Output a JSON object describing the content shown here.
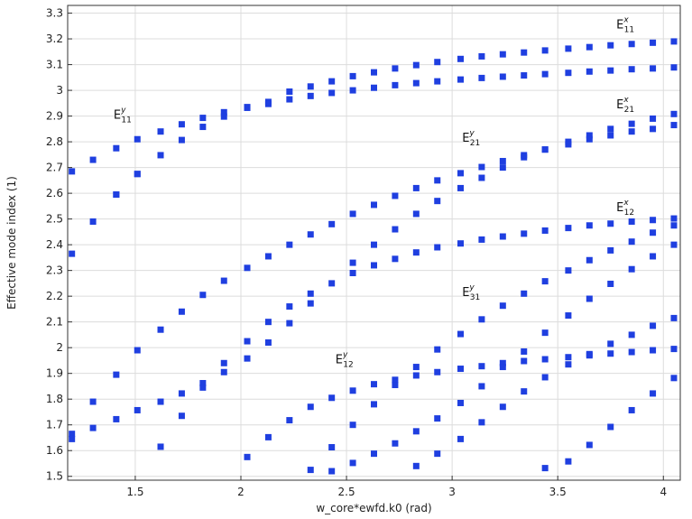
{
  "chart_data": {
    "type": "scatter",
    "title": "",
    "xlabel": "w_core*ewfd.k0 (rad)",
    "ylabel": "Effective mode index (1)",
    "xlim": [
      1.18,
      4.08
    ],
    "ylim": [
      1.485,
      3.33
    ],
    "xticks": [
      1.5,
      2,
      2.5,
      3,
      3.5,
      4
    ],
    "yticks": [
      1.5,
      1.6,
      1.7,
      1.8,
      1.9,
      2,
      2.1,
      2.2,
      2.3,
      2.4,
      2.5,
      2.6,
      2.7,
      2.8,
      2.9,
      3,
      3.1,
      3.2,
      3.3
    ],
    "grid": true,
    "marker_color": "#1f3fe0",
    "annotations": [
      {
        "text": "E",
        "sub": "11",
        "sup": "x",
        "x": 3.82,
        "y": 3.24
      },
      {
        "text": "E",
        "sub": "11",
        "sup": "y",
        "x": 1.44,
        "y": 2.89
      },
      {
        "text": "E",
        "sub": "21",
        "sup": "x",
        "x": 3.82,
        "y": 2.93
      },
      {
        "text": "E",
        "sub": "21",
        "sup": "y",
        "x": 3.09,
        "y": 2.8
      },
      {
        "text": "E",
        "sub": "12",
        "sup": "x",
        "x": 3.82,
        "y": 2.53
      },
      {
        "text": "E",
        "sub": "31",
        "sup": "y",
        "x": 3.09,
        "y": 2.2
      },
      {
        "text": "E",
        "sub": "12",
        "sup": "y",
        "x": 2.49,
        "y": 1.94
      }
    ],
    "points": [
      [
        1.2,
        2.685
      ],
      [
        1.3,
        2.73
      ],
      [
        1.41,
        2.775
      ],
      [
        1.51,
        2.81
      ],
      [
        1.62,
        2.84
      ],
      [
        1.72,
        2.868
      ],
      [
        1.82,
        2.893
      ],
      [
        1.92,
        2.915
      ],
      [
        2.03,
        2.935
      ],
      [
        2.13,
        2.955
      ],
      [
        2.23,
        2.995
      ],
      [
        2.33,
        3.015
      ],
      [
        2.43,
        3.035
      ],
      [
        2.53,
        3.055
      ],
      [
        2.63,
        3.07
      ],
      [
        2.73,
        3.085
      ],
      [
        2.83,
        3.098
      ],
      [
        2.93,
        3.11
      ],
      [
        3.04,
        3.122
      ],
      [
        3.14,
        3.132
      ],
      [
        3.24,
        3.14
      ],
      [
        3.34,
        3.147
      ],
      [
        3.44,
        3.155
      ],
      [
        3.55,
        3.162
      ],
      [
        3.65,
        3.168
      ],
      [
        3.75,
        3.175
      ],
      [
        3.85,
        3.18
      ],
      [
        3.95,
        3.185
      ],
      [
        4.05,
        3.19
      ],
      [
        1.41,
        2.595
      ],
      [
        1.51,
        2.675
      ],
      [
        1.62,
        2.748
      ],
      [
        1.72,
        2.807
      ],
      [
        1.82,
        2.858
      ],
      [
        1.92,
        2.898
      ],
      [
        2.03,
        2.932
      ],
      [
        2.13,
        2.947
      ],
      [
        2.23,
        2.965
      ],
      [
        2.33,
        2.978
      ],
      [
        2.43,
        2.99
      ],
      [
        2.53,
        3.0
      ],
      [
        2.63,
        3.01
      ],
      [
        2.73,
        3.02
      ],
      [
        2.83,
        3.028
      ],
      [
        2.93,
        3.035
      ],
      [
        3.04,
        3.042
      ],
      [
        3.14,
        3.048
      ],
      [
        3.24,
        3.053
      ],
      [
        3.34,
        3.058
      ],
      [
        3.44,
        3.063
      ],
      [
        3.55,
        3.068
      ],
      [
        3.65,
        3.073
      ],
      [
        3.75,
        3.077
      ],
      [
        3.85,
        3.082
      ],
      [
        3.95,
        3.085
      ],
      [
        4.05,
        3.089
      ],
      [
        1.2,
        2.365
      ],
      [
        1.3,
        2.49
      ],
      [
        1.41,
        2.595
      ],
      [
        1.51,
        2.675
      ],
      [
        1.2,
        1.665
      ],
      [
        1.3,
        1.79
      ],
      [
        1.41,
        1.895
      ],
      [
        1.51,
        1.99
      ],
      [
        1.62,
        2.07
      ],
      [
        1.72,
        2.14
      ],
      [
        1.82,
        2.205
      ],
      [
        1.92,
        2.26
      ],
      [
        2.03,
        2.31
      ],
      [
        2.13,
        2.355
      ],
      [
        2.23,
        2.4
      ],
      [
        2.33,
        2.44
      ],
      [
        2.43,
        2.48
      ],
      [
        2.53,
        2.52
      ],
      [
        2.63,
        2.555
      ],
      [
        2.73,
        2.59
      ],
      [
        2.83,
        2.62
      ],
      [
        2.93,
        2.65
      ],
      [
        3.04,
        2.678
      ],
      [
        3.14,
        2.702
      ],
      [
        3.24,
        2.725
      ],
      [
        3.34,
        2.748
      ],
      [
        3.44,
        2.77
      ],
      [
        3.55,
        2.8
      ],
      [
        3.65,
        2.825
      ],
      [
        3.75,
        2.85
      ],
      [
        3.85,
        2.87
      ],
      [
        3.95,
        2.89
      ],
      [
        4.05,
        2.908
      ],
      [
        1.2,
        1.645
      ],
      [
        1.3,
        1.688
      ],
      [
        1.41,
        1.722
      ],
      [
        1.51,
        1.757
      ],
      [
        1.62,
        1.79
      ],
      [
        1.72,
        1.822
      ],
      [
        1.82,
        1.862
      ],
      [
        1.92,
        1.905
      ],
      [
        2.03,
        1.958
      ],
      [
        2.13,
        2.02
      ],
      [
        2.23,
        2.095
      ],
      [
        2.33,
        2.172
      ],
      [
        2.43,
        2.25
      ],
      [
        2.53,
        2.29
      ],
      [
        2.63,
        2.32
      ],
      [
        2.73,
        2.345
      ],
      [
        2.83,
        2.37
      ],
      [
        2.93,
        2.39
      ],
      [
        3.04,
        2.405
      ],
      [
        3.14,
        2.42
      ],
      [
        3.24,
        2.432
      ],
      [
        3.34,
        2.443
      ],
      [
        3.44,
        2.455
      ],
      [
        3.55,
        2.465
      ],
      [
        3.65,
        2.475
      ],
      [
        3.75,
        2.482
      ],
      [
        3.85,
        2.49
      ],
      [
        3.95,
        2.496
      ],
      [
        4.05,
        2.502
      ],
      [
        1.62,
        1.615
      ],
      [
        1.72,
        1.735
      ],
      [
        1.82,
        1.845
      ],
      [
        1.92,
        1.94
      ],
      [
        2.03,
        2.025
      ],
      [
        2.13,
        2.1
      ],
      [
        2.23,
        2.16
      ],
      [
        2.33,
        2.21
      ],
      [
        2.53,
        2.33
      ],
      [
        2.63,
        2.4
      ],
      [
        2.73,
        2.46
      ],
      [
        2.83,
        2.52
      ],
      [
        2.93,
        2.57
      ],
      [
        3.04,
        2.62
      ],
      [
        3.14,
        2.66
      ],
      [
        3.24,
        2.7
      ],
      [
        3.34,
        2.74
      ],
      [
        3.44,
        2.77
      ],
      [
        3.55,
        2.79
      ],
      [
        3.65,
        2.81
      ],
      [
        3.75,
        2.825
      ],
      [
        3.85,
        2.84
      ],
      [
        3.95,
        2.85
      ],
      [
        4.05,
        2.865
      ],
      [
        2.03,
        1.575
      ],
      [
        2.13,
        1.652
      ],
      [
        2.23,
        1.718
      ],
      [
        2.33,
        1.77
      ],
      [
        2.43,
        1.805
      ],
      [
        2.53,
        1.833
      ],
      [
        2.63,
        1.858
      ],
      [
        2.73,
        1.875
      ],
      [
        2.83,
        1.892
      ],
      [
        2.93,
        1.905
      ],
      [
        3.04,
        1.918
      ],
      [
        3.14,
        1.928
      ],
      [
        3.24,
        1.94
      ],
      [
        3.34,
        1.948
      ],
      [
        3.44,
        1.955
      ],
      [
        3.55,
        1.963
      ],
      [
        3.65,
        1.97
      ],
      [
        3.75,
        1.977
      ],
      [
        3.85,
        1.983
      ],
      [
        3.95,
        1.99
      ],
      [
        4.05,
        1.995
      ],
      [
        2.33,
        1.525
      ],
      [
        2.43,
        1.613
      ],
      [
        2.53,
        1.7
      ],
      [
        2.63,
        1.78
      ],
      [
        2.73,
        1.855
      ],
      [
        2.83,
        1.925
      ],
      [
        2.93,
        1.993
      ],
      [
        3.04,
        2.053
      ],
      [
        3.14,
        2.11
      ],
      [
        3.24,
        2.163
      ],
      [
        3.34,
        2.21
      ],
      [
        3.44,
        2.258
      ],
      [
        3.55,
        2.3
      ],
      [
        3.65,
        2.34
      ],
      [
        3.75,
        2.378
      ],
      [
        3.85,
        2.412
      ],
      [
        3.95,
        2.447
      ],
      [
        4.05,
        2.475
      ],
      [
        2.43,
        1.52
      ],
      [
        2.53,
        1.552
      ],
      [
        2.63,
        1.588
      ],
      [
        2.73,
        1.628
      ],
      [
        2.83,
        1.675
      ],
      [
        2.93,
        1.725
      ],
      [
        3.04,
        1.785
      ],
      [
        3.14,
        1.85
      ],
      [
        3.24,
        1.925
      ],
      [
        3.34,
        1.985
      ],
      [
        3.44,
        2.058
      ],
      [
        3.55,
        2.125
      ],
      [
        3.65,
        2.19
      ],
      [
        3.75,
        2.248
      ],
      [
        3.85,
        2.305
      ],
      [
        3.95,
        2.355
      ],
      [
        4.05,
        2.4
      ],
      [
        2.83,
        1.54
      ],
      [
        2.93,
        1.588
      ],
      [
        3.04,
        1.645
      ],
      [
        3.14,
        1.71
      ],
      [
        3.24,
        1.77
      ],
      [
        3.34,
        1.83
      ],
      [
        3.44,
        1.885
      ],
      [
        3.55,
        1.935
      ],
      [
        3.65,
        1.975
      ],
      [
        3.75,
        2.015
      ],
      [
        3.85,
        2.05
      ],
      [
        3.95,
        2.085
      ],
      [
        4.05,
        2.115
      ],
      [
        3.44,
        1.532
      ],
      [
        3.55,
        1.558
      ],
      [
        3.65,
        1.622
      ],
      [
        3.75,
        1.692
      ],
      [
        3.85,
        1.757
      ],
      [
        3.95,
        1.822
      ],
      [
        4.05,
        1.882
      ]
    ]
  }
}
